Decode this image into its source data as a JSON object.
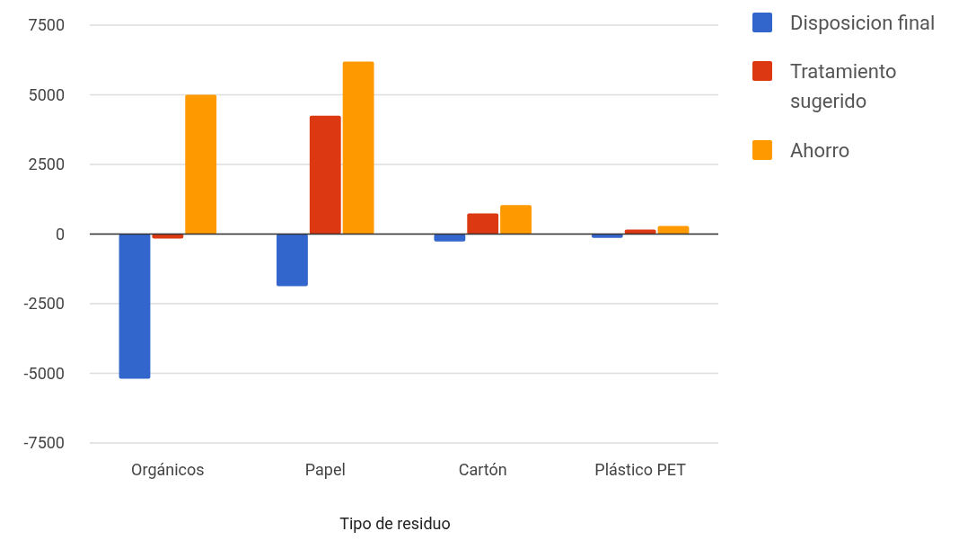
{
  "chart_data": {
    "type": "bar",
    "xlabel": "Tipo de residuo",
    "categories": [
      "Orgánicos",
      "Papel",
      "Cartón",
      "Plástico PET"
    ],
    "series": [
      {
        "name": "Disposicion final",
        "color": "#3366cc",
        "values": [
          -5190,
          -1870,
          -270,
          -140
        ]
      },
      {
        "name": "Tratamiento sugerido",
        "color": "#dc3912",
        "values": [
          -160,
          4250,
          740,
          160
        ]
      },
      {
        "name": "Ahorro",
        "color": "#ff9900",
        "values": [
          5000,
          6190,
          1040,
          290
        ]
      }
    ],
    "ylim": [
      -7500,
      7500
    ],
    "yticks": [
      -7500,
      -5000,
      -2500,
      0,
      2500,
      5000,
      7500
    ],
    "grid": "y",
    "legend": "right"
  }
}
